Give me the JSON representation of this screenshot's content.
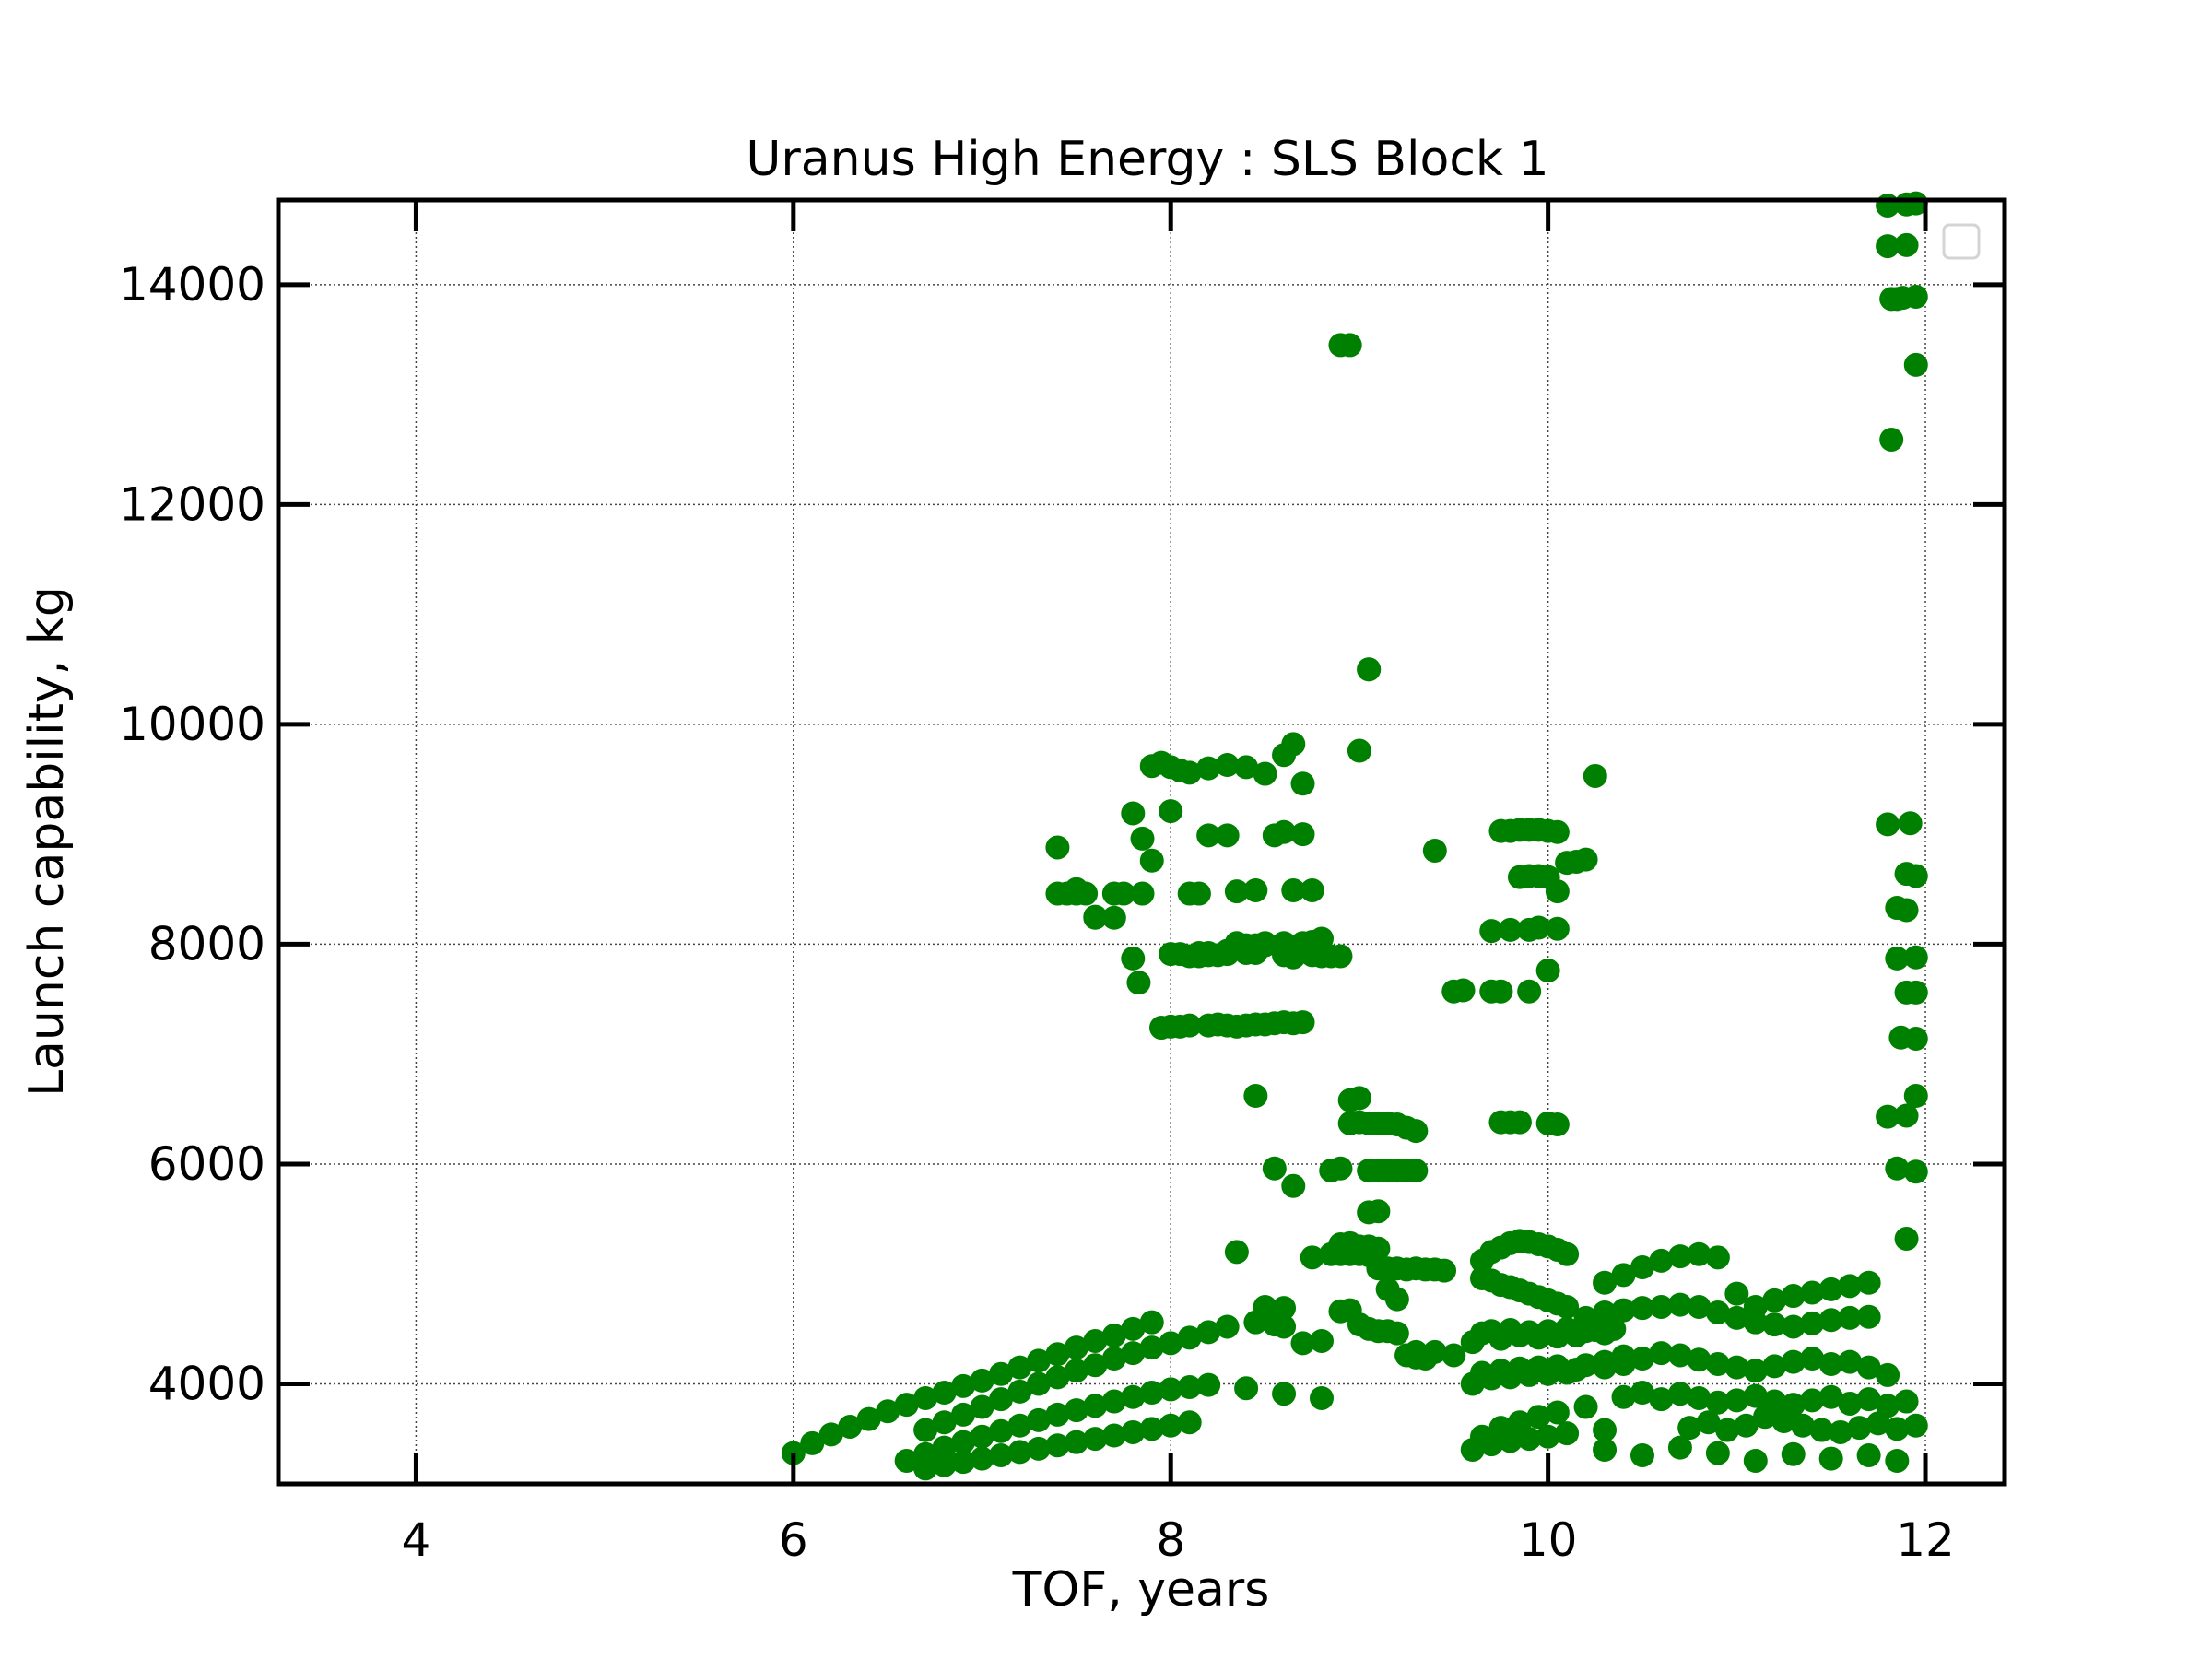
{
  "chart_data": {
    "type": "scatter",
    "title": "Uranus High Energy : SLS Block 1",
    "xlabel": "TOF, years",
    "ylabel": "Launch capability, kg",
    "xlim": [
      3.27,
      12.42
    ],
    "ylim": [
      3090,
      14770
    ],
    "xticks": [
      4,
      6,
      8,
      10,
      12
    ],
    "yticks": [
      4000,
      6000,
      8000,
      10000,
      12000,
      14000
    ],
    "grid": true,
    "legend": {
      "placement": "top-right",
      "entries": []
    },
    "color": "#008000",
    "x": [
      6.0,
      6.1,
      6.2,
      6.3,
      6.4,
      6.5,
      6.6,
      6.7,
      6.8,
      6.9,
      7.0,
      7.1,
      7.2,
      7.3,
      7.4,
      7.5,
      7.6,
      7.7,
      7.8,
      7.9,
      6.7,
      6.8,
      6.9,
      7.0,
      7.1,
      7.2,
      7.3,
      7.4,
      7.5,
      7.6,
      7.7,
      7.8,
      7.9,
      8.0,
      8.1,
      8.2,
      8.3,
      6.6,
      6.7,
      6.8,
      6.9,
      7.0,
      7.1,
      7.2,
      7.3,
      7.4,
      7.5,
      7.6,
      7.7,
      7.8,
      7.9,
      8.0,
      8.1,
      8.2,
      8.4,
      8.6,
      8.8,
      6.7,
      6.8,
      6.9,
      7.0,
      7.1,
      7.2,
      7.3,
      7.4,
      7.5,
      7.6,
      7.7,
      7.8,
      7.9,
      8.0,
      8.1,
      7.4,
      7.5,
      7.6,
      7.7,
      7.8,
      7.85,
      7.9,
      7.95,
      8.0,
      8.05,
      8.1,
      8.2,
      8.3,
      8.4,
      8.5,
      8.6,
      8.65,
      8.7,
      7.4,
      7.45,
      7.5,
      7.55,
      7.6,
      7.7,
      7.75,
      7.85,
      7.9,
      7.8,
      7.83,
      8.0,
      8.1,
      8.15,
      8.2,
      8.3,
      8.35,
      8.45,
      8.55,
      8.6,
      8.65,
      8.75,
      8.7,
      7.95,
      8.0,
      8.05,
      8.1,
      8.2,
      8.25,
      8.3,
      8.35,
      8.4,
      8.45,
      8.5,
      8.55,
      8.6,
      8.65,
      8.7,
      8.1,
      8.15,
      8.2,
      8.25,
      8.3,
      8.35,
      8.4,
      8.45,
      8.5,
      8.6,
      8.65,
      8.7,
      8.75,
      8.8,
      8.0,
      8.05,
      8.15,
      8.2,
      8.3,
      8.4,
      8.45,
      8.5,
      8.6,
      8.7,
      8.75,
      8.8,
      8.85,
      8.9,
      8.9,
      8.95,
      9.05,
      9.05,
      9.0,
      9.4,
      9.5,
      9.55,
      8.95,
      9.0,
      9.05,
      9.1,
      9.15,
      9.2,
      9.25,
      9.3,
      8.95,
      9.0,
      9.05,
      9.1,
      9.15,
      9.2,
      9.25,
      9.3,
      9.05,
      9.1,
      8.9,
      8.95,
      9.0,
      9.05,
      9.1,
      9.15,
      9.2,
      9.25,
      9.3,
      9.35,
      9.4,
      9.45,
      8.9,
      8.95,
      9.0,
      9.05,
      9.1,
      9.15,
      9.2,
      9.3,
      9.4,
      9.5,
      8.45,
      8.55,
      8.65,
      8.5,
      8.6,
      8.35,
      8.45,
      8.55,
      8.6,
      8.7,
      8.8,
      8.75,
      8.85,
      8.9,
      8.85,
      8.9,
      8.95,
      9.0,
      9.05,
      9.1,
      9.15,
      9.2,
      9.25,
      9.3,
      9.35,
      9.75,
      9.8,
      9.85,
      9.9,
      9.95,
      10.0,
      10.05,
      9.85,
      9.9,
      9.95,
      10.0,
      10.05,
      10.1,
      10.15,
      10.2,
      10.25,
      9.7,
      9.8,
      9.9,
      9.95,
      10.05,
      9.7,
      9.75,
      9.9,
      9.75,
      9.8,
      9.85,
      10.0,
      10.05,
      10.0,
      9.65,
      9.65,
      9.7,
      9.7,
      9.75,
      9.75,
      9.8,
      9.8,
      9.85,
      9.85,
      9.9,
      9.9,
      9.95,
      9.95,
      10.0,
      10.0,
      10.05,
      10.05,
      10.1,
      10.1,
      9.6,
      9.65,
      9.7,
      9.75,
      9.8,
      9.85,
      9.9,
      9.95,
      10.0,
      10.05,
      10.1,
      10.15,
      10.2,
      10.25,
      10.3,
      10.35,
      9.6,
      9.65,
      9.7,
      9.75,
      9.8,
      9.85,
      9.9,
      9.95,
      10.0,
      10.05,
      10.1,
      10.15,
      10.2,
      10.3,
      10.4,
      9.6,
      9.65,
      9.7,
      9.75,
      9.8,
      9.85,
      9.9,
      9.95,
      10.0,
      10.05,
      10.1,
      10.2,
      10.3,
      10.3,
      10.4,
      10.5,
      10.6,
      10.7,
      10.8,
      10.9,
      11.0,
      11.1,
      11.2,
      11.3,
      11.4,
      11.5,
      11.6,
      11.7,
      10.2,
      10.3,
      10.4,
      10.5,
      10.6,
      10.7,
      10.8,
      10.9,
      11.0,
      11.1,
      11.2,
      11.3,
      11.4,
      11.5,
      11.6,
      11.7,
      10.3,
      10.4,
      10.5,
      10.6,
      10.7,
      10.8,
      10.9,
      11.0,
      11.1,
      11.2,
      11.3,
      11.4,
      11.5,
      11.6,
      11.7,
      11.8,
      10.4,
      10.5,
      10.6,
      10.7,
      10.8,
      10.9,
      11.0,
      11.1,
      11.2,
      11.3,
      11.4,
      11.5,
      11.6,
      11.7,
      11.8,
      11.9,
      10.3,
      10.5,
      10.7,
      10.9,
      11.1,
      11.3,
      11.5,
      11.7,
      11.85,
      10.75,
      10.85,
      10.95,
      11.05,
      11.15,
      11.25,
      11.35,
      11.45,
      11.55,
      11.65,
      11.75,
      11.85,
      11.95,
      11.8,
      11.9,
      11.95,
      11.8,
      11.9,
      11.82,
      11.88,
      11.95,
      11.85,
      11.95,
      11.82,
      11.92,
      11.8,
      11.9,
      11.95,
      11.85,
      11.9,
      11.95,
      11.85,
      11.9,
      11.95,
      11.87,
      11.95,
      11.8,
      11.9,
      11.95,
      11.85,
      11.95,
      11.9
    ],
    "y": [
      3370,
      3460,
      3540,
      3610,
      3680,
      3750,
      3810,
      3870,
      3920,
      3980,
      4030,
      4090,
      4150,
      4210,
      4270,
      4330,
      4390,
      4440,
      4500,
      4560,
      3580,
      3650,
      3720,
      3790,
      3860,
      3930,
      4000,
      4060,
      4120,
      4170,
      4230,
      4280,
      4330,
      4370,
      4420,
      4470,
      4520,
      3300,
      3360,
      3420,
      3470,
      3520,
      3570,
      3620,
      3670,
      3720,
      3760,
      3800,
      3840,
      3880,
      3920,
      3950,
      3970,
      3990,
      3960,
      3910,
      3870,
      3230,
      3260,
      3290,
      3320,
      3350,
      3380,
      3410,
      3440,
      3470,
      3500,
      3530,
      3560,
      3590,
      3620,
      3650,
      8880,
      8500,
      8250,
      8460,
      9190,
      8960,
      9620,
      9650,
      9610,
      9580,
      9560,
      9600,
      9630,
      9610,
      9550,
      9720,
      9820,
      9460,
      8460,
      8460,
      8460,
      8460,
      8240,
      8240,
      8460,
      8460,
      8760,
      7870,
      7650,
      9210,
      8460,
      8460,
      8990,
      8990,
      8480,
      8490,
      8990,
      9020,
      8490,
      8490,
      9000,
      7240,
      7250,
      7250,
      7260,
      7260,
      7270,
      7260,
      7250,
      7260,
      7270,
      7270,
      7280,
      7290,
      7280,
      7290,
      7890,
      7890,
      7900,
      7900,
      7910,
      8010,
      7920,
      7920,
      8010,
      7900,
      7880,
      8010,
      8020,
      8050,
      7910,
      7910,
      7920,
      7920,
      7940,
      7990,
      7990,
      7990,
      8010,
      8000,
      7900,
      7890,
      7890,
      7890,
      13450,
      13450,
      10500,
      10500,
      9760,
      8850,
      7570,
      7580,
      6370,
      6380,
      6370,
      6370,
      6370,
      6360,
      6330,
      6300,
      6580,
      6600,
      5940,
      5940,
      5940,
      5940,
      5940,
      5940,
      5560,
      5570,
      5270,
      5280,
      5250,
      5250,
      5230,
      5050,
      5050,
      5040,
      5050,
      5040,
      5040,
      5030,
      4660,
      4670,
      4540,
      4500,
      4480,
      4480,
      4460,
      4290,
      4290,
      4260,
      6620,
      5960,
      5800,
      4700,
      4690,
      5200,
      4560,
      4540,
      4520,
      4370,
      4390,
      5150,
      5180,
      5960,
      5940,
      5180,
      5180,
      5180,
      5170,
      5050,
      4860,
      4770,
      4260,
      4240,
      4230,
      9030,
      9030,
      9040,
      9040,
      9040,
      9030,
      9020,
      8610,
      8620,
      8620,
      8610,
      8480,
      8740,
      8750,
      8770,
      9530,
      8120,
      8130,
      8130,
      8150,
      8140,
      7570,
      7570,
      7570,
      6380,
      6380,
      6380,
      6370,
      6360,
      7760,
      5120,
      4960,
      5200,
      4940,
      5240,
      4900,
      5280,
      4880,
      5300,
      4850,
      5290,
      4820,
      5270,
      4790,
      5250,
      4760,
      5220,
      4730,
      5180,
      4700,
      4380,
      4460,
      4480,
      4410,
      4490,
      4440,
      4470,
      4420,
      4480,
      4430,
      4500,
      4440,
      4480,
      4490,
      4460,
      4500,
      4000,
      4100,
      4050,
      4120,
      4060,
      4140,
      4080,
      4150,
      4090,
      4160,
      4100,
      4130,
      4170,
      4150,
      4180,
      3400,
      3520,
      3450,
      3600,
      3480,
      3650,
      3500,
      3700,
      3520,
      3740,
      3550,
      3790,
      3580,
      4920,
      4990,
      5060,
      5120,
      5160,
      5180,
      5150,
      4820,
      4700,
      4760,
      4800,
      4830,
      4860,
      4890,
      4920,
      4600,
      4650,
      4670,
      4690,
      4700,
      4720,
      4700,
      4650,
      4600,
      4560,
      4540,
      4520,
      4550,
      4580,
      4600,
      4610,
      4200,
      4250,
      4230,
      4280,
      4260,
      4220,
      4180,
      4150,
      4120,
      4160,
      4200,
      4230,
      4180,
      4200,
      4150,
      4080,
      3880,
      3920,
      3860,
      3910,
      3870,
      3830,
      3850,
      3890,
      3840,
      3810,
      3850,
      3880,
      3820,
      3860,
      3800,
      3840,
      3400,
      3350,
      3420,
      3370,
      3300,
      3360,
      3320,
      3350,
      3300,
      3600,
      3650,
      3580,
      3620,
      3700,
      3660,
      3620,
      3580,
      3560,
      3600,
      3640,
      3590,
      3620,
      14720,
      14730,
      14740,
      14350,
      14360,
      13870,
      13880,
      13890,
      13870,
      13270,
      12590,
      9100,
      9090,
      8640,
      8620,
      8330,
      8310,
      7880,
      7870,
      7560,
      7560,
      7150,
      7140,
      6430,
      6440,
      6620,
      5960,
      5930,
      5320
    ]
  }
}
